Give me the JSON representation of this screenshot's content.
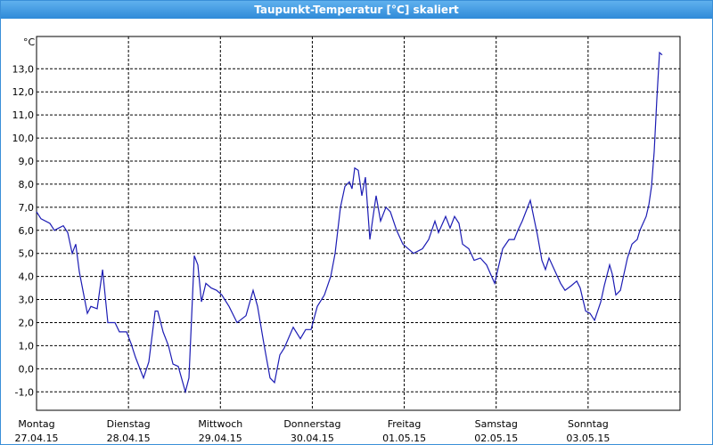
{
  "chart_data": {
    "type": "line",
    "title": "Taupunkt-Temperatur [°C] skaliert",
    "y_unit": "°C",
    "color": "#1c1cb4",
    "grid": true,
    "xlim": [
      0,
      7
    ],
    "ylim": [
      -1.8,
      14.4
    ],
    "yticks": [
      {
        "value": -1,
        "label": "-1,0"
      },
      {
        "value": 0,
        "label": "0,0"
      },
      {
        "value": 1,
        "label": "1,0"
      },
      {
        "value": 2,
        "label": "2,0"
      },
      {
        "value": 3,
        "label": "3,0"
      },
      {
        "value": 4,
        "label": "4,0"
      },
      {
        "value": 5,
        "label": "5,0"
      },
      {
        "value": 6,
        "label": "6,0"
      },
      {
        "value": 7,
        "label": "7,0"
      },
      {
        "value": 8,
        "label": "8,0"
      },
      {
        "value": 9,
        "label": "9,0"
      },
      {
        "value": 10,
        "label": "10,0"
      },
      {
        "value": 11,
        "label": "11,0"
      },
      {
        "value": 12,
        "label": "12,0"
      },
      {
        "value": 13,
        "label": "13,0"
      }
    ],
    "xticks": [
      {
        "value": 0,
        "label": "Montag"
      },
      {
        "value": 1,
        "label": "Dienstag"
      },
      {
        "value": 2,
        "label": "Mittwoch"
      },
      {
        "value": 3,
        "label": "Donnerstag"
      },
      {
        "value": 4,
        "label": "Freitag"
      },
      {
        "value": 5,
        "label": "Samstag"
      },
      {
        "value": 6,
        "label": "Sonntag"
      }
    ],
    "xtick_dates": [
      "27.04.15",
      "28.04.15",
      "29.04.15",
      "30.04.15",
      "01.05.15",
      "02.05.15",
      "03.05.15"
    ],
    "x": [
      0,
      0.048,
      0.145,
      0.194,
      0.242,
      0.291,
      0.339,
      0.388,
      0.427,
      0.465,
      0.514,
      0.553,
      0.591,
      0.659,
      0.718,
      0.776,
      0.853,
      0.902,
      0.979,
      1.028,
      1.076,
      1.163,
      1.222,
      1.29,
      1.319,
      1.377,
      1.435,
      1.484,
      1.542,
      1.619,
      1.658,
      1.716,
      1.755,
      1.794,
      1.842,
      1.9,
      1.958,
      2.016,
      2.094,
      2.181,
      2.278,
      2.356,
      2.404,
      2.472,
      2.54,
      2.589,
      2.647,
      2.695,
      2.792,
      2.87,
      2.928,
      2.986,
      3.054,
      3.132,
      3.2,
      3.248,
      3.306,
      3.355,
      3.403,
      3.432,
      3.461,
      3.5,
      3.539,
      3.578,
      3.626,
      3.665,
      3.694,
      3.742,
      3.801,
      3.849,
      3.917,
      3.985,
      4.101,
      4.198,
      4.266,
      4.334,
      4.373,
      4.45,
      4.499,
      4.547,
      4.596,
      4.634,
      4.702,
      4.76,
      4.828,
      4.896,
      4.983,
      5.071,
      5.139,
      5.197,
      5.236,
      5.284,
      5.371,
      5.449,
      5.497,
      5.536,
      5.575,
      5.701,
      5.749,
      5.817,
      5.876,
      5.914,
      5.973,
      6.021,
      6.07,
      6.138,
      6.176,
      6.234,
      6.263,
      6.302,
      6.351,
      6.428,
      6.477,
      6.535,
      6.564,
      6.632,
      6.661,
      6.69,
      6.719,
      6.748,
      6.777,
      6.806
    ],
    "values": [
      6.8,
      6.5,
      6.3,
      6.0,
      6.1,
      6.2,
      5.9,
      5.0,
      5.4,
      4.2,
      3.2,
      2.4,
      2.7,
      2.6,
      4.3,
      2.0,
      2.0,
      1.6,
      1.6,
      1.1,
      0.5,
      -0.4,
      0.3,
      2.5,
      2.5,
      1.6,
      1.0,
      0.2,
      0.1,
      -1.0,
      -0.4,
      4.9,
      4.5,
      2.9,
      3.7,
      3.5,
      3.4,
      3.2,
      2.7,
      2.0,
      2.3,
      3.4,
      2.7,
      1.1,
      -0.4,
      -0.6,
      0.6,
      0.9,
      1.8,
      1.3,
      1.7,
      1.7,
      2.7,
      3.2,
      4.0,
      5.0,
      7.0,
      7.9,
      8.1,
      7.8,
      8.7,
      8.6,
      7.5,
      8.3,
      5.6,
      6.7,
      7.5,
      6.4,
      7.0,
      6.8,
      6.0,
      5.4,
      5.0,
      5.2,
      5.6,
      6.4,
      5.9,
      6.6,
      6.1,
      6.6,
      6.3,
      5.4,
      5.2,
      4.7,
      4.8,
      4.5,
      3.7,
      5.2,
      5.6,
      5.6,
      6.0,
      6.4,
      7.3,
      5.8,
      4.7,
      4.3,
      4.8,
      3.7,
      3.4,
      3.6,
      3.8,
      3.5,
      2.5,
      2.4,
      2.1,
      2.9,
      3.6,
      4.5,
      4.1,
      3.2,
      3.4,
      4.8,
      5.4,
      5.6,
      6.0,
      6.6,
      7.1,
      7.9,
      9.4,
      11.7,
      13.7,
      13.6
    ]
  }
}
